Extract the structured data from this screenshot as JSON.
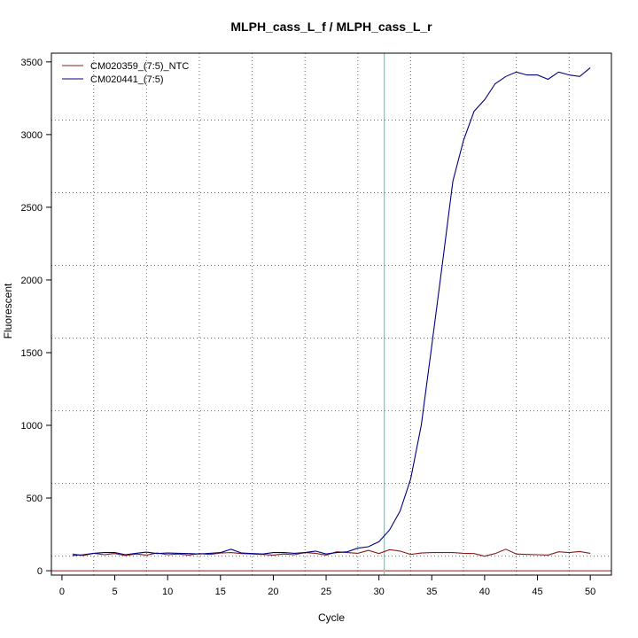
{
  "chart_data": {
    "type": "line",
    "title": "MLPH_cass_L_f / MLPH_cass_L_r",
    "xlabel": "Cycle",
    "ylabel": "Fluorescent",
    "xlim": [
      -1.0,
      52.0
    ],
    "ylim": [
      -30,
      3560
    ],
    "x_ticks": [
      0,
      5,
      10,
      15,
      20,
      25,
      30,
      35,
      40,
      45,
      50
    ],
    "y_ticks": [
      0,
      500,
      1000,
      1500,
      2000,
      2500,
      3000,
      3500
    ],
    "x_grid": [
      3,
      8,
      13,
      18,
      23,
      28,
      33,
      38,
      43,
      48
    ],
    "y_grid": [
      100,
      600,
      1100,
      1600,
      2100,
      2600,
      3100,
      3600
    ],
    "grid": true,
    "legend_position": "top-left",
    "threshold": {
      "axis": "x",
      "value": 30.5,
      "color": "#40e0d0"
    },
    "baseline": {
      "axis": "y",
      "value": 0,
      "color": "#8b1a1a"
    },
    "x": [
      1,
      2,
      3,
      4,
      5,
      6,
      7,
      8,
      9,
      10,
      11,
      12,
      13,
      14,
      15,
      16,
      17,
      18,
      19,
      20,
      21,
      22,
      23,
      24,
      25,
      26,
      27,
      28,
      29,
      30,
      31,
      32,
      33,
      34,
      35,
      36,
      37,
      38,
      39,
      40,
      41,
      42,
      43,
      44,
      45,
      46,
      47,
      48,
      49,
      50
    ],
    "series": [
      {
        "name": "CM020359_(7:5)_NTC",
        "color": "#8b1a1a",
        "values": [
          115,
          105,
          120,
          110,
          118,
          105,
          115,
          108,
          122,
          110,
          115,
          108,
          118,
          112,
          122,
          125,
          118,
          115,
          112,
          108,
          115,
          110,
          125,
          120,
          108,
          130,
          125,
          120,
          140,
          118,
          145,
          135,
          112,
          122,
          125,
          125,
          125,
          120,
          118,
          100,
          118,
          148,
          115,
          112,
          110,
          108,
          130,
          125,
          132,
          120
        ]
      },
      {
        "name": "CM020441_(7:5)",
        "color": "#000080",
        "values": [
          105,
          110,
          120,
          125,
          125,
          110,
          120,
          128,
          118,
          122,
          120,
          118,
          115,
          120,
          125,
          148,
          122,
          118,
          115,
          125,
          125,
          120,
          125,
          135,
          115,
          125,
          130,
          155,
          165,
          200,
          280,
          410,
          630,
          1000,
          1550,
          2110,
          2680,
          2960,
          3160,
          3240,
          3350,
          3400,
          3430,
          3410,
          3410,
          3380,
          3430,
          3410,
          3400,
          3460
        ]
      }
    ]
  }
}
